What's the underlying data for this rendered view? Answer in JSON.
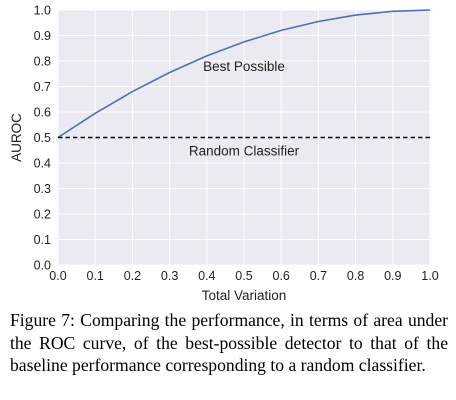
{
  "chart_data": {
    "type": "line",
    "xlabel": "Total Variation",
    "ylabel": "AUROC",
    "xlim": [
      0.0,
      1.0
    ],
    "ylim": [
      0.0,
      1.0
    ],
    "x_ticks": [
      "0.0",
      "0.1",
      "0.2",
      "0.3",
      "0.4",
      "0.5",
      "0.6",
      "0.7",
      "0.8",
      "0.9",
      "1.0"
    ],
    "y_ticks": [
      "0.0",
      "0.1",
      "0.2",
      "0.3",
      "0.4",
      "0.5",
      "0.6",
      "0.7",
      "0.8",
      "0.9",
      "1.0"
    ],
    "grid": true,
    "series": [
      {
        "name": "Best Possible",
        "color": "#4c72b0",
        "style": "solid",
        "x": [
          0.0,
          0.1,
          0.2,
          0.3,
          0.4,
          0.5,
          0.6,
          0.7,
          0.8,
          0.9,
          1.0
        ],
        "y": [
          0.5,
          0.595,
          0.68,
          0.755,
          0.82,
          0.875,
          0.92,
          0.955,
          0.98,
          0.995,
          1.0
        ]
      },
      {
        "name": "Random Classifier",
        "color": "#000000",
        "style": "dashed",
        "x": [
          0.0,
          1.0
        ],
        "y": [
          0.5,
          0.5
        ]
      }
    ],
    "annotations": [
      {
        "text": "Best Possible",
        "x": 0.5,
        "y": 0.78
      },
      {
        "text": "Random Classifier",
        "x": 0.5,
        "y": 0.45
      }
    ]
  },
  "caption": "Figure 7: Comparing the performance, in terms of area under the ROC curve, of the best-possible detector to that of the baseline performance corresponding to a random classifier."
}
